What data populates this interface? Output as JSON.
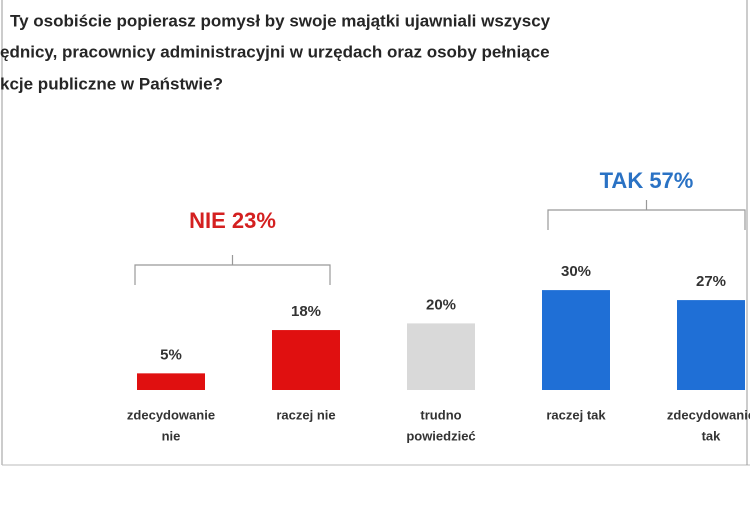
{
  "chart_data": {
    "type": "bar",
    "title": [
      "Ty osobiście popierasz pomysł by swoje majątki ujawniali wszyscy",
      "ędnicy, pracownicy administracyjni w urzędach oraz osoby pełniące",
      "kcje publiczne w Państwie?"
    ],
    "categories": [
      [
        "zdecydowanie",
        "nie"
      ],
      [
        "raczej nie"
      ],
      [
        "trudno",
        "powiedzieć"
      ],
      [
        "raczej tak"
      ],
      [
        "zdecydowanie",
        "tak"
      ]
    ],
    "values": [
      5,
      18,
      20,
      30,
      27
    ],
    "value_labels": [
      "5%",
      "18%",
      "20%",
      "30%",
      "27%"
    ],
    "colors": [
      "#e01010",
      "#e01010",
      "#d9d9d9",
      "#1f6fd6",
      "#1f6fd6"
    ],
    "groups": [
      {
        "label": "NIE 23%",
        "color": "#d42020"
      },
      {
        "label": "TAK 57%",
        "color": "#2a72c4"
      }
    ]
  }
}
